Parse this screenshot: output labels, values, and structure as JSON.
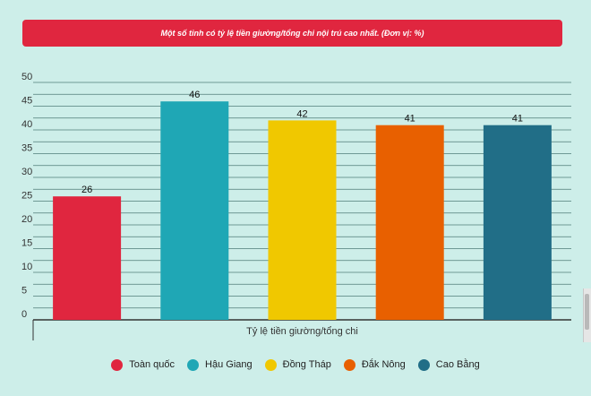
{
  "chart_data": {
    "type": "bar",
    "title": "Một số tỉnh có tỷ lệ tiền giường/tổng chi nội trú cao nhất. (Đơn vị: %)",
    "xlabel": "Tỷ lệ tiền giường/tổng chi",
    "ylabel": "",
    "ylim": [
      0,
      50
    ],
    "yticks": [
      "0",
      "5",
      "10",
      "15",
      "20",
      "25",
      "30",
      "35",
      "40",
      "45",
      "50"
    ],
    "grid": true,
    "legend_position": "bottom",
    "categories": [
      "Toàn quốc",
      "Hậu Giang",
      "Đồng Tháp",
      "Đắk Nông",
      "Cao Bằng"
    ],
    "values": [
      26,
      46,
      42,
      41,
      41
    ],
    "data_labels": [
      "26",
      "46",
      "42",
      "41",
      "41"
    ],
    "colors": [
      "#e0263f",
      "#1fa7b5",
      "#f0c800",
      "#e86000",
      "#216e87"
    ]
  }
}
